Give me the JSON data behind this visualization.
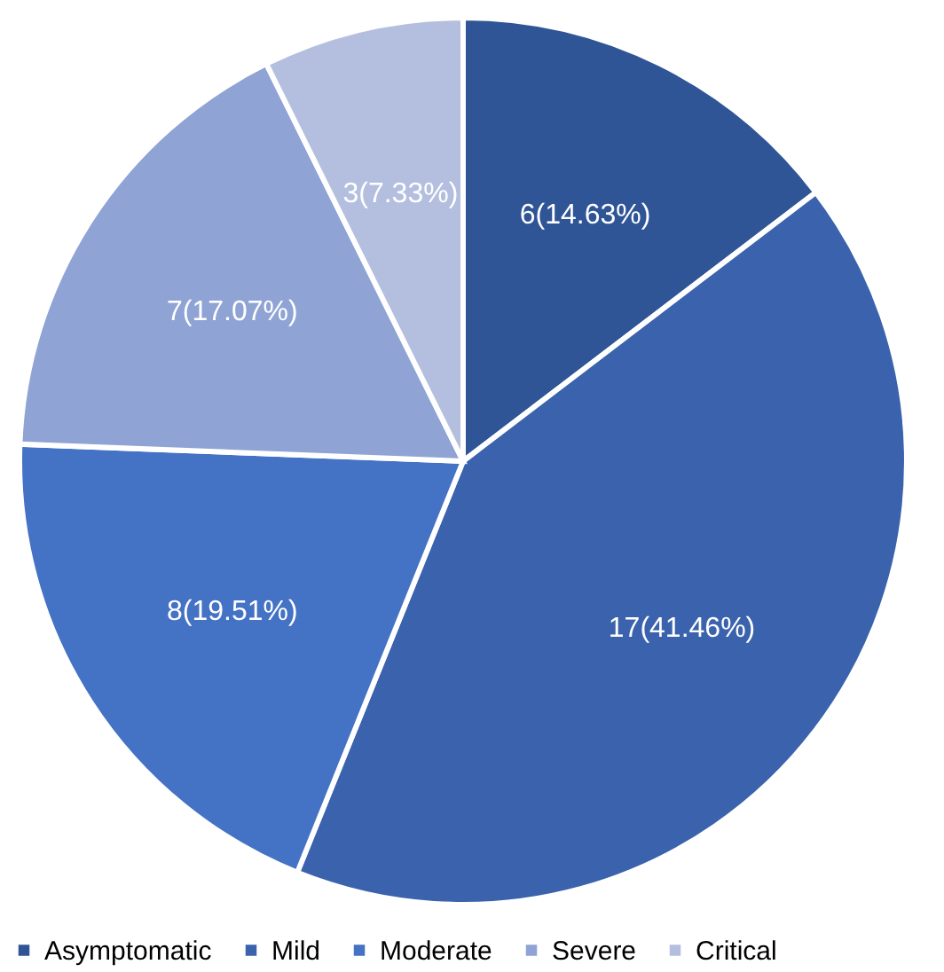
{
  "chart_data": {
    "type": "pie",
    "categories": [
      "Asymptomatic",
      "Mild",
      "Moderate",
      "Severe",
      "Critical"
    ],
    "values": [
      6,
      17,
      8,
      7,
      3
    ],
    "colors": [
      "#2f5597",
      "#3a62ad",
      "#4472c4",
      "#8fa3d4",
      "#b4bfe0"
    ],
    "value_labels": [
      "6(14.63%)",
      "17(41.46%)",
      "8(19.51%)",
      "7(17.07%)",
      "3(7.33%)"
    ],
    "legend": "bottom"
  }
}
